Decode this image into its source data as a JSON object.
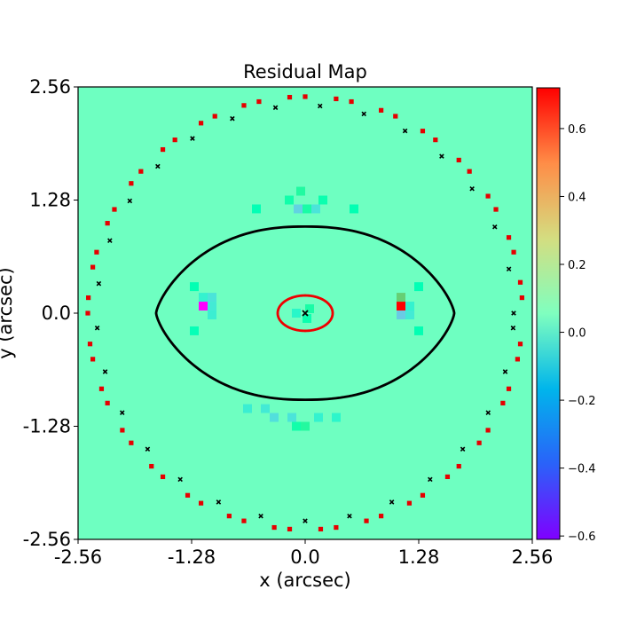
{
  "chart_data": {
    "type": "heatmap",
    "title": "Residual Map",
    "xlabel": "x (arcsec)",
    "ylabel": "y (arcsec)",
    "xlim": [
      -2.56,
      2.56
    ],
    "ylim": [
      -2.56,
      2.56
    ],
    "x_ticks": [
      {
        "value": -2.56,
        "label": "-2.56"
      },
      {
        "value": -1.28,
        "label": "-1.28"
      },
      {
        "value": 0.0,
        "label": "0.0"
      },
      {
        "value": 1.28,
        "label": "1.28"
      },
      {
        "value": 2.56,
        "label": "2.56"
      }
    ],
    "y_ticks": [
      {
        "value": -2.56,
        "label": "-2.56"
      },
      {
        "value": -1.28,
        "label": "-1.28"
      },
      {
        "value": 0.0,
        "label": "0.0"
      },
      {
        "value": 1.28,
        "label": "1.28"
      },
      {
        "value": 2.56,
        "label": "2.56"
      }
    ],
    "grid": false,
    "background_value": 0.0,
    "mask_radius_arcsec": 2.45,
    "pixel_scale_arcsec": 0.1,
    "colormap": "rainbow",
    "colorbar": {
      "range": [
        -0.61,
        0.72
      ],
      "ticks": [
        {
          "value": 0.6,
          "label": "0.6"
        },
        {
          "value": 0.4,
          "label": "0.4"
        },
        {
          "value": 0.2,
          "label": "0.2"
        },
        {
          "value": 0.0,
          "label": "0.0"
        },
        {
          "value": -0.2,
          "label": "−0.2"
        },
        {
          "value": -0.4,
          "label": "−0.4"
        },
        {
          "value": -0.6,
          "label": "−0.6"
        }
      ]
    },
    "residual_pixels": [
      {
        "x": -1.15,
        "y": 0.08,
        "value": -0.61
      },
      {
        "x": -1.05,
        "y": 0.08,
        "value": -0.12
      },
      {
        "x": -1.15,
        "y": 0.18,
        "value": -0.08
      },
      {
        "x": -1.05,
        "y": 0.18,
        "value": -0.14
      },
      {
        "x": -1.05,
        "y": -0.02,
        "value": -0.1
      },
      {
        "x": 1.08,
        "y": 0.08,
        "value": 0.72
      },
      {
        "x": 1.08,
        "y": 0.18,
        "value": 0.32
      },
      {
        "x": 1.08,
        "y": -0.02,
        "value": -0.22
      },
      {
        "x": 1.18,
        "y": -0.02,
        "value": -0.12
      },
      {
        "x": 1.18,
        "y": 0.08,
        "value": -0.08
      },
      {
        "x": -0.08,
        "y": 1.18,
        "value": -0.2
      },
      {
        "x": 0.02,
        "y": 1.18,
        "value": 0.12
      },
      {
        "x": 0.12,
        "y": 1.18,
        "value": -0.14
      },
      {
        "x": -0.18,
        "y": 1.28,
        "value": 0.1
      },
      {
        "x": -0.05,
        "y": 1.38,
        "value": 0.14
      },
      {
        "x": 0.2,
        "y": 1.28,
        "value": 0.08
      },
      {
        "x": -0.45,
        "y": -1.08,
        "value": -0.12
      },
      {
        "x": -0.35,
        "y": -1.18,
        "value": -0.16
      },
      {
        "x": -0.65,
        "y": -1.08,
        "value": -0.1
      },
      {
        "x": -0.15,
        "y": -1.18,
        "value": -0.14
      },
      {
        "x": 0.0,
        "y": -1.28,
        "value": 0.15
      },
      {
        "x": -0.1,
        "y": -1.28,
        "value": 0.1
      },
      {
        "x": 0.15,
        "y": -1.18,
        "value": -0.08
      },
      {
        "x": 0.35,
        "y": -1.18,
        "value": -0.06
      },
      {
        "x": -0.1,
        "y": 0.0,
        "value": -0.05
      },
      {
        "x": 0.05,
        "y": 0.05,
        "value": 0.12
      },
      {
        "x": 0.02,
        "y": -0.06,
        "value": 0.08
      },
      {
        "x": -0.55,
        "y": 1.18,
        "value": 0.05
      },
      {
        "x": 0.55,
        "y": 1.18,
        "value": 0.06
      },
      {
        "x": -1.25,
        "y": 0.3,
        "value": 0.06
      },
      {
        "x": -1.25,
        "y": -0.2,
        "value": 0.04
      },
      {
        "x": 1.28,
        "y": 0.3,
        "value": 0.05
      },
      {
        "x": 1.28,
        "y": -0.2,
        "value": 0.06
      }
    ],
    "critical_curves": [
      {
        "color": "#000000",
        "semi_axis_x": 1.68,
        "semi_axis_y": 0.98,
        "shape": "lens"
      },
      {
        "color": "#ee0000",
        "semi_axis_x": 0.31,
        "semi_axis_y": 0.2,
        "shape": "ellipse"
      }
    ],
    "marker_center": {
      "x": 0.0,
      "y": 0.0,
      "symbol": "x",
      "color": "#000000"
    }
  }
}
